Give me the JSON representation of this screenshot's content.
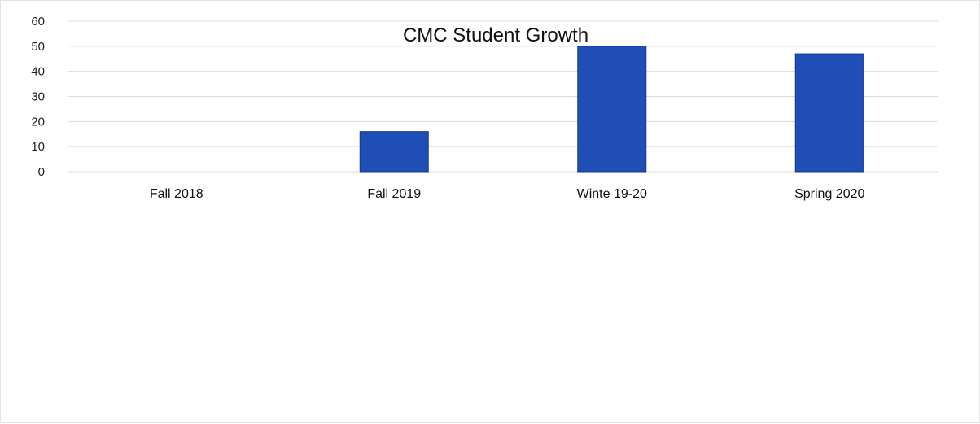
{
  "chart_data": {
    "type": "bar",
    "title": "CMC Student Growth",
    "categories": [
      "Fall 2018",
      "Fall 2019",
      "Winte 19-20",
      "Spring 2020"
    ],
    "values": [
      0,
      16,
      50,
      47
    ],
    "xlabel": "",
    "ylabel": "",
    "ylim": [
      0,
      60
    ],
    "yticks": [
      0,
      10,
      20,
      30,
      40,
      50,
      60
    ],
    "grid": true,
    "legend": "none",
    "colors": {
      "bar": "#1f4fb5",
      "bar_edge": "#123a8c",
      "grid": "#dcdcdc"
    }
  }
}
